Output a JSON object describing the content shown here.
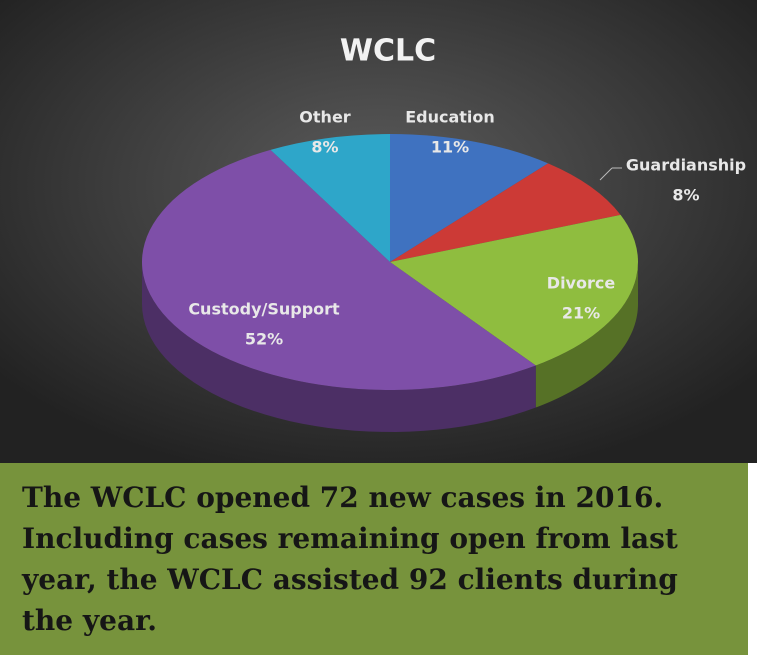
{
  "chart_data": {
    "type": "pie",
    "title": "WCLC",
    "categories": [
      "Education",
      "Guardianship",
      "Divorce",
      "Custody/Support",
      "Other"
    ],
    "values": [
      11,
      8,
      21,
      52,
      8
    ],
    "value_labels": [
      "11%",
      "8%",
      "21%",
      "52%",
      "8%"
    ],
    "colors": [
      "#3f72c0",
      "#cc3a36",
      "#8fbd3f",
      "#7e4fa8",
      "#2ea6c9"
    ]
  },
  "caption": [
    "The WCLC opened 72 new cases in 2016.",
    "Including cases remaining open from last",
    "year, the WCLC assisted 92 clients during",
    "the year."
  ]
}
